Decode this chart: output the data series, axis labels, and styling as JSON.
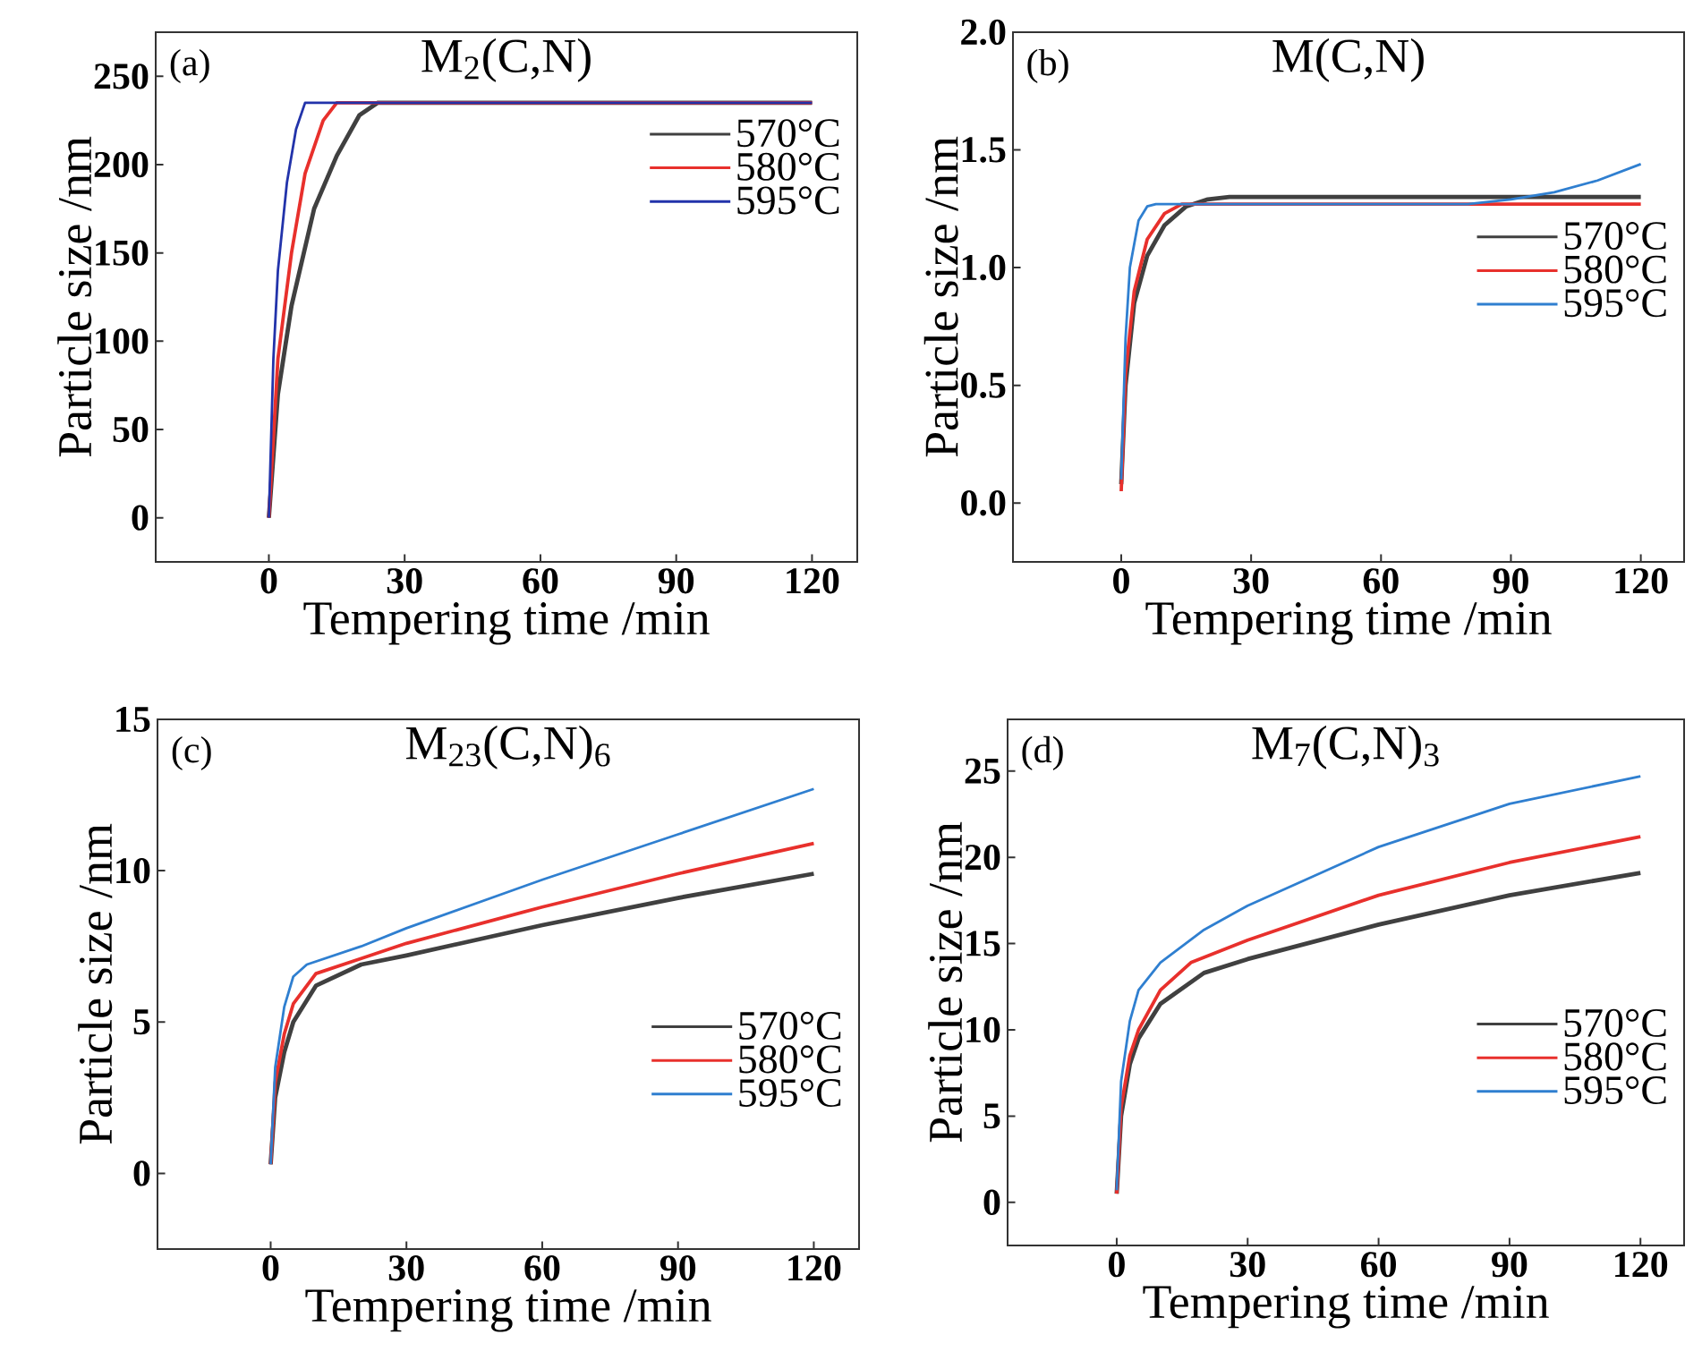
{
  "chart_data": [
    {
      "type": "line",
      "title": "M$_{2}$(C,N)",
      "xlabel": "Tempering time /min",
      "ylabel": "Particle size /nm",
      "annotations": [
        "(a)"
      ],
      "xlim": [
        -25,
        130
      ],
      "ylim": [
        -25,
        275
      ],
      "xticks": [
        0,
        30,
        60,
        90,
        120
      ],
      "yticks": [
        0,
        50,
        100,
        150,
        200,
        250
      ],
      "legend": "top right",
      "series": [
        {
          "name": "570°C",
          "color": "#404040",
          "x": [
            0,
            2,
            5,
            10,
            15,
            20,
            24,
            120
          ],
          "values": [
            0,
            70,
            120,
            175,
            205,
            228,
            235,
            235
          ]
        },
        {
          "name": "580°C",
          "color": "#e8302c",
          "x": [
            0,
            2,
            5,
            8,
            12,
            15,
            120
          ],
          "values": [
            0,
            90,
            150,
            195,
            225,
            235,
            235
          ]
        },
        {
          "name": "595°C",
          "color": "#2233aa",
          "x": [
            0,
            1,
            2,
            4,
            6,
            8,
            120
          ],
          "values": [
            0,
            90,
            140,
            190,
            220,
            235,
            235
          ]
        }
      ]
    },
    {
      "type": "line",
      "title": "M(C,N)",
      "xlabel": "Tempering time /min",
      "ylabel": "Particle size /nm",
      "annotations": [
        "(b)"
      ],
      "xlim": [
        -25,
        130
      ],
      "ylim": [
        -0.25,
        2.0
      ],
      "xticks": [
        0,
        30,
        60,
        90,
        120
      ],
      "yticks": [
        {
          "value": 0,
          "label": "0.0"
        },
        0.5,
        {
          "value": 1,
          "label": "1.0"
        },
        1.5,
        {
          "value": 2,
          "label": "2.0"
        }
      ],
      "legend": "right",
      "series": [
        {
          "name": "570°C",
          "color": "#404040",
          "x": [
            0,
            1,
            3,
            6,
            10,
            15,
            20,
            25,
            120
          ],
          "values": [
            0.08,
            0.5,
            0.85,
            1.05,
            1.18,
            1.26,
            1.29,
            1.3,
            1.3
          ]
        },
        {
          "name": "580°C",
          "color": "#e8302c",
          "x": [
            0,
            1,
            3,
            6,
            10,
            14,
            120
          ],
          "values": [
            0.05,
            0.55,
            0.9,
            1.12,
            1.23,
            1.27,
            1.27
          ]
        },
        {
          "name": "595°C",
          "color": "#2f7fd0",
          "x": [
            0,
            1,
            2,
            4,
            6,
            8,
            80,
            90,
            100,
            110,
            120
          ],
          "values": [
            0.1,
            0.7,
            1.0,
            1.2,
            1.26,
            1.27,
            1.27,
            1.29,
            1.32,
            1.37,
            1.44
          ]
        }
      ]
    },
    {
      "type": "line",
      "title": "M$_{23}$(C,N)$_{6}$",
      "xlabel": "Tempering time /min",
      "ylabel": "Particle size /nm",
      "annotations": [
        "(c)"
      ],
      "xlim": [
        -25,
        130
      ],
      "ylim": [
        -2.5,
        15
      ],
      "xticks": [
        0,
        30,
        60,
        90,
        120
      ],
      "yticks": [
        0,
        5,
        10,
        15
      ],
      "legend": "bottom right",
      "series": [
        {
          "name": "570°C",
          "color": "#404040",
          "x": [
            0,
            1,
            3,
            5,
            10,
            20,
            30,
            60,
            90,
            120
          ],
          "values": [
            0.3,
            2.5,
            4,
            5,
            6.2,
            6.9,
            7.2,
            8.2,
            9.1,
            9.9
          ]
        },
        {
          "name": "580°C",
          "color": "#e8302c",
          "x": [
            0,
            1,
            3,
            5,
            10,
            20,
            30,
            60,
            90,
            120
          ],
          "values": [
            0.3,
            3,
            4.6,
            5.6,
            6.6,
            7.1,
            7.6,
            8.8,
            9.9,
            10.9
          ]
        },
        {
          "name": "595°C",
          "color": "#2f7fd0",
          "x": [
            0,
            1,
            3,
            5,
            8,
            20,
            30,
            60,
            90,
            120
          ],
          "values": [
            0.3,
            3.5,
            5.5,
            6.5,
            6.9,
            7.5,
            8.1,
            9.7,
            11.2,
            12.7
          ]
        }
      ]
    },
    {
      "type": "line",
      "title": "M$_{7}$(C,N)$_{3}$",
      "xlabel": "Tempering time /min",
      "ylabel": "Particle size /nm",
      "annotations": [
        "(d)"
      ],
      "xlim": [
        -25,
        130
      ],
      "ylim": [
        -2.5,
        28
      ],
      "xticks": [
        0,
        30,
        60,
        90,
        120
      ],
      "yticks": [
        0,
        5,
        10,
        15,
        20,
        25
      ],
      "legend": "bottom right",
      "series": [
        {
          "name": "570°C",
          "color": "#404040",
          "x": [
            0,
            1,
            3,
            5,
            10,
            20,
            30,
            60,
            90,
            120
          ],
          "values": [
            0.5,
            5,
            8,
            9.5,
            11.5,
            13.3,
            14.1,
            16.1,
            17.8,
            19.1
          ]
        },
        {
          "name": "580°C",
          "color": "#e8302c",
          "x": [
            0,
            1,
            3,
            5,
            10,
            17,
            30,
            60,
            90,
            120
          ],
          "values": [
            0.5,
            5.5,
            8.5,
            10,
            12.3,
            13.9,
            15.2,
            17.8,
            19.7,
            21.2
          ]
        },
        {
          "name": "595°C",
          "color": "#2f7fd0",
          "x": [
            0,
            1,
            3,
            5,
            10,
            20,
            30,
            60,
            90,
            120
          ],
          "values": [
            0.7,
            7,
            10.5,
            12.3,
            13.9,
            15.8,
            17.2,
            20.6,
            23.1,
            24.7
          ]
        }
      ]
    }
  ]
}
